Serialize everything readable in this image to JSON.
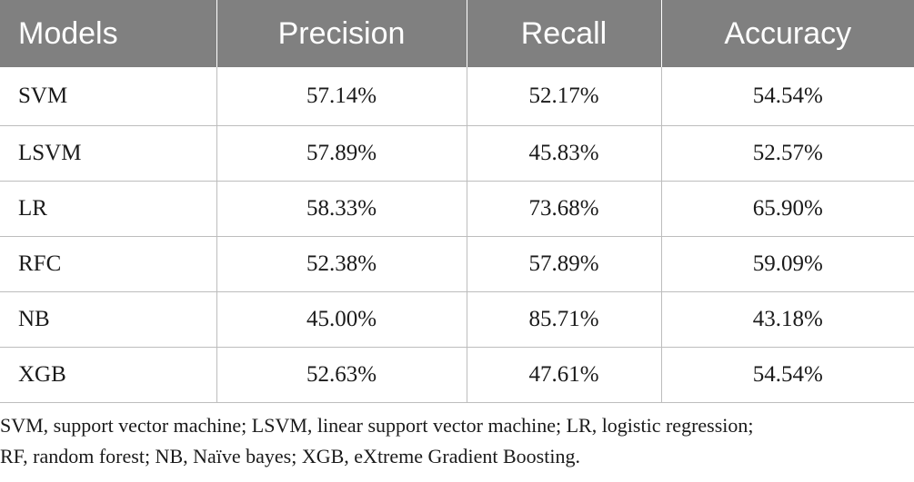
{
  "table": {
    "headers": [
      "Models",
      "Precision",
      "Recall",
      "Accuracy"
    ],
    "rows": [
      [
        "SVM",
        "57.14%",
        "52.17%",
        "54.54%"
      ],
      [
        "LSVM",
        "57.89%",
        "45.83%",
        "52.57%"
      ],
      [
        "LR",
        "58.33%",
        "73.68%",
        "65.90%"
      ],
      [
        "RFC",
        "52.38%",
        "57.89%",
        "59.09%"
      ],
      [
        "NB",
        "45.00%",
        "85.71%",
        "43.18%"
      ],
      [
        "XGB",
        "52.63%",
        "47.61%",
        "54.54%"
      ]
    ]
  },
  "footnote": {
    "line1": "SVM, support vector machine; LSVM, linear support vector machine; LR, logistic regression;",
    "line2": "RF, random forest; NB, Naïve bayes; XGB, eXtreme Gradient Boosting."
  },
  "colors": {
    "header_bg": "#808080",
    "header_text": "#ffffff",
    "grid_line": "#bdbdbd"
  }
}
